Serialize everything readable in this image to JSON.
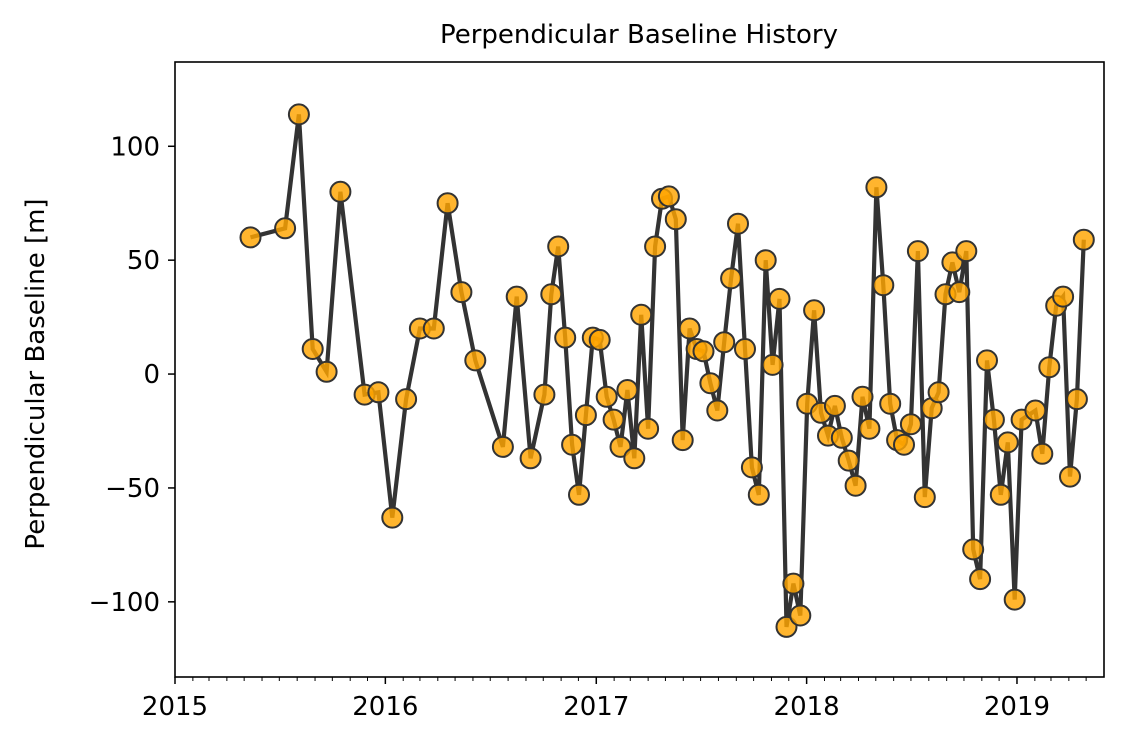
{
  "chart_data": {
    "type": "line",
    "title": "Perpendicular Baseline History",
    "xlabel": "",
    "ylabel": "Perpendicular Baseline [m]",
    "xlim": [
      "2015-01-01",
      "2019-06-01"
    ],
    "ylim": [
      -133,
      137
    ],
    "x_ticks": [
      "2015-01-01",
      "2016-01-01",
      "2017-01-01",
      "2018-01-01",
      "2019-01-01"
    ],
    "x_tick_labels": [
      "2015",
      "2016",
      "2017",
      "2018",
      "2019"
    ],
    "y_ticks": [
      -100,
      -50,
      0,
      50,
      100
    ],
    "y_tick_labels": [
      "−100",
      "−50",
      "0",
      "50",
      "100"
    ],
    "grid": false,
    "line_color": "#333333",
    "marker_fill": "#ffa500",
    "marker_edge": "#333333",
    "series": [
      {
        "points": [
          [
            "2015-05-12",
            60
          ],
          [
            "2015-07-11",
            64
          ],
          [
            "2015-08-04",
            114
          ],
          [
            "2015-08-28",
            11
          ],
          [
            "2015-09-21",
            1
          ],
          [
            "2015-10-15",
            80
          ],
          [
            "2015-11-26",
            -9
          ],
          [
            "2015-12-20",
            -8
          ],
          [
            "2016-01-13",
            -63
          ],
          [
            "2016-02-06",
            -11
          ],
          [
            "2016-03-01",
            20
          ],
          [
            "2016-03-25",
            20
          ],
          [
            "2016-04-18",
            75
          ],
          [
            "2016-05-12",
            36
          ],
          [
            "2016-06-05",
            6
          ],
          [
            "2016-07-23",
            -32
          ],
          [
            "2016-08-16",
            34
          ],
          [
            "2016-09-09",
            -37
          ],
          [
            "2016-10-03",
            -9
          ],
          [
            "2016-10-15",
            35
          ],
          [
            "2016-10-27",
            56
          ],
          [
            "2016-11-08",
            16
          ],
          [
            "2016-11-20",
            -31
          ],
          [
            "2016-12-02",
            -53
          ],
          [
            "2016-12-14",
            -18
          ],
          [
            "2016-12-26",
            16
          ],
          [
            "2017-01-07",
            15
          ],
          [
            "2017-01-19",
            -10
          ],
          [
            "2017-01-31",
            -20
          ],
          [
            "2017-02-12",
            -32
          ],
          [
            "2017-02-24",
            -7
          ],
          [
            "2017-03-08",
            -37
          ],
          [
            "2017-03-20",
            26
          ],
          [
            "2017-04-01",
            -24
          ],
          [
            "2017-04-13",
            56
          ],
          [
            "2017-04-25",
            77
          ],
          [
            "2017-05-07",
            78
          ],
          [
            "2017-05-19",
            68
          ],
          [
            "2017-05-31",
            -29
          ],
          [
            "2017-06-12",
            20
          ],
          [
            "2017-06-24",
            11
          ],
          [
            "2017-07-06",
            10
          ],
          [
            "2017-07-18",
            -4
          ],
          [
            "2017-07-30",
            -16
          ],
          [
            "2017-08-11",
            14
          ],
          [
            "2017-08-23",
            42
          ],
          [
            "2017-09-04",
            66
          ],
          [
            "2017-09-16",
            11
          ],
          [
            "2017-09-28",
            -41
          ],
          [
            "2017-10-10",
            -53
          ],
          [
            "2017-10-22",
            50
          ],
          [
            "2017-11-03",
            4
          ],
          [
            "2017-11-15",
            33
          ],
          [
            "2017-11-27",
            -111
          ],
          [
            "2017-12-09",
            -92
          ],
          [
            "2017-12-21",
            -106
          ],
          [
            "2018-01-02",
            -13
          ],
          [
            "2018-01-14",
            28
          ],
          [
            "2018-01-26",
            -17
          ],
          [
            "2018-02-07",
            -27
          ],
          [
            "2018-02-19",
            -14
          ],
          [
            "2018-03-03",
            -28
          ],
          [
            "2018-03-15",
            -38
          ],
          [
            "2018-03-27",
            -49
          ],
          [
            "2018-04-08",
            -10
          ],
          [
            "2018-04-20",
            -24
          ],
          [
            "2018-05-02",
            82
          ],
          [
            "2018-05-14",
            39
          ],
          [
            "2018-05-26",
            -13
          ],
          [
            "2018-06-07",
            -29
          ],
          [
            "2018-06-19",
            -31
          ],
          [
            "2018-07-01",
            -22
          ],
          [
            "2018-07-13",
            54
          ],
          [
            "2018-07-25",
            -54
          ],
          [
            "2018-08-06",
            -15
          ],
          [
            "2018-08-18",
            -8
          ],
          [
            "2018-08-30",
            35
          ],
          [
            "2018-09-11",
            49
          ],
          [
            "2018-09-23",
            36
          ],
          [
            "2018-10-05",
            54
          ],
          [
            "2018-10-17",
            -77
          ],
          [
            "2018-10-29",
            -90
          ],
          [
            "2018-11-10",
            6
          ],
          [
            "2018-11-22",
            -20
          ],
          [
            "2018-12-04",
            -53
          ],
          [
            "2018-12-16",
            -30
          ],
          [
            "2018-12-28",
            -99
          ],
          [
            "2019-01-09",
            -20
          ],
          [
            "2019-02-02",
            -16
          ],
          [
            "2019-02-14",
            -35
          ],
          [
            "2019-02-26",
            3
          ],
          [
            "2019-03-10",
            30
          ],
          [
            "2019-03-22",
            34
          ],
          [
            "2019-04-03",
            -45
          ],
          [
            "2019-04-15",
            -11
          ],
          [
            "2019-04-27",
            59
          ]
        ]
      }
    ]
  }
}
